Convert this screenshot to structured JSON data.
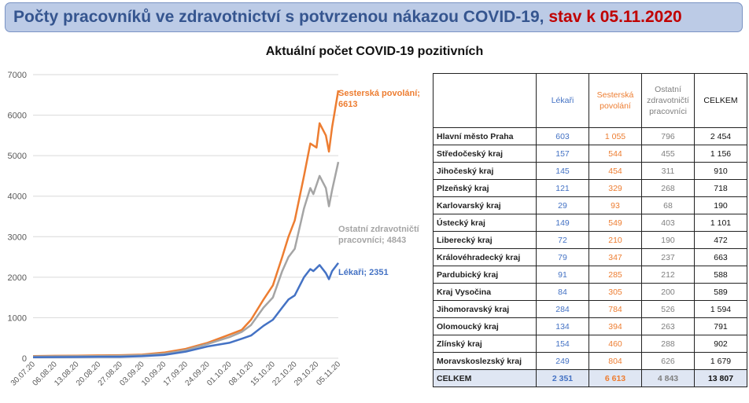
{
  "header": {
    "title": "Počty pracovníků ve zdravotnictví s potvrzenou nákazou COVID-19,",
    "date": "stav k 05.11.2020"
  },
  "chart_data": {
    "type": "line",
    "title": "Aktuální počet COVID-19 pozitivních",
    "ylim": [
      0,
      7000
    ],
    "yticks": [
      0,
      1000,
      2000,
      3000,
      4000,
      5000,
      6000,
      7000
    ],
    "xtick_labels": [
      "30.07.20",
      "06.08.20",
      "13.08.20",
      "20.08.20",
      "27.08.20",
      "03.09.20",
      "10.09.20",
      "17.09.20",
      "24.09.20",
      "01.10.20",
      "08.10.20",
      "15.10.20",
      "22.10.20",
      "29.10.20",
      "05.11.20"
    ],
    "x_start": "2020-07-30",
    "x_end": "2020-11-05",
    "series": [
      {
        "name": "Sesterská povolání",
        "label": "Sesterská povolání; 6613",
        "color": "#ed7d31",
        "points": [
          [
            "2020-07-30",
            55
          ],
          [
            "2020-08-06",
            60
          ],
          [
            "2020-08-13",
            62
          ],
          [
            "2020-08-20",
            70
          ],
          [
            "2020-08-27",
            75
          ],
          [
            "2020-09-03",
            90
          ],
          [
            "2020-09-10",
            140
          ],
          [
            "2020-09-17",
            230
          ],
          [
            "2020-09-24",
            380
          ],
          [
            "2020-10-01",
            580
          ],
          [
            "2020-10-05",
            700
          ],
          [
            "2020-10-08",
            950
          ],
          [
            "2020-10-12",
            1450
          ],
          [
            "2020-10-15",
            1800
          ],
          [
            "2020-10-18",
            2500
          ],
          [
            "2020-10-20",
            3000
          ],
          [
            "2020-10-22",
            3400
          ],
          [
            "2020-10-25",
            4500
          ],
          [
            "2020-10-27",
            5300
          ],
          [
            "2020-10-29",
            5200
          ],
          [
            "2020-10-30",
            5800
          ],
          [
            "2020-11-01",
            5500
          ],
          [
            "2020-11-02",
            5100
          ],
          [
            "2020-11-03",
            5700
          ],
          [
            "2020-11-05",
            6613
          ]
        ]
      },
      {
        "name": "Ostatní zdravotničtí pracovníci",
        "label": "Ostatní zdravotničtí pracovníci; 4843",
        "color": "#a5a5a5",
        "points": [
          [
            "2020-07-30",
            45
          ],
          [
            "2020-08-06",
            48
          ],
          [
            "2020-08-13",
            50
          ],
          [
            "2020-08-20",
            55
          ],
          [
            "2020-08-27",
            60
          ],
          [
            "2020-09-03",
            75
          ],
          [
            "2020-09-10",
            110
          ],
          [
            "2020-09-17",
            200
          ],
          [
            "2020-09-24",
            350
          ],
          [
            "2020-10-01",
            520
          ],
          [
            "2020-10-05",
            650
          ],
          [
            "2020-10-08",
            820
          ],
          [
            "2020-10-12",
            1250
          ],
          [
            "2020-10-15",
            1500
          ],
          [
            "2020-10-18",
            2150
          ],
          [
            "2020-10-20",
            2500
          ],
          [
            "2020-10-22",
            2700
          ],
          [
            "2020-10-25",
            3700
          ],
          [
            "2020-10-27",
            4200
          ],
          [
            "2020-10-28",
            4050
          ],
          [
            "2020-10-30",
            4500
          ],
          [
            "2020-11-01",
            4200
          ],
          [
            "2020-11-02",
            3750
          ],
          [
            "2020-11-03",
            4150
          ],
          [
            "2020-11-05",
            4843
          ]
        ]
      },
      {
        "name": "Lékaři",
        "label": "Lékaři; 2351",
        "color": "#4472c4",
        "points": [
          [
            "2020-07-30",
            25
          ],
          [
            "2020-08-06",
            28
          ],
          [
            "2020-08-13",
            30
          ],
          [
            "2020-08-20",
            33
          ],
          [
            "2020-08-27",
            35
          ],
          [
            "2020-09-03",
            50
          ],
          [
            "2020-09-10",
            80
          ],
          [
            "2020-09-17",
            160
          ],
          [
            "2020-09-24",
            290
          ],
          [
            "2020-10-01",
            380
          ],
          [
            "2020-10-05",
            480
          ],
          [
            "2020-10-08",
            560
          ],
          [
            "2020-10-12",
            800
          ],
          [
            "2020-10-15",
            950
          ],
          [
            "2020-10-18",
            1250
          ],
          [
            "2020-10-20",
            1450
          ],
          [
            "2020-10-22",
            1550
          ],
          [
            "2020-10-25",
            2000
          ],
          [
            "2020-10-27",
            2200
          ],
          [
            "2020-10-28",
            2150
          ],
          [
            "2020-10-30",
            2300
          ],
          [
            "2020-11-01",
            2100
          ],
          [
            "2020-11-02",
            1950
          ],
          [
            "2020-11-03",
            2150
          ],
          [
            "2020-11-05",
            2351
          ]
        ]
      }
    ]
  },
  "table": {
    "headers": [
      "Lékaři",
      "Sesterská povolání",
      "Ostatní zdravotničtí pracovníci",
      "CELKEM"
    ],
    "rows": [
      {
        "region": "Hlavní město Praha",
        "lekari": "603",
        "sesterska": "1 055",
        "ostatni": "796",
        "celkem": "2 454"
      },
      {
        "region": "Středočeský kraj",
        "lekari": "157",
        "sesterska": "544",
        "ostatni": "455",
        "celkem": "1 156"
      },
      {
        "region": "Jihočeský kraj",
        "lekari": "145",
        "sesterska": "454",
        "ostatni": "311",
        "celkem": "910"
      },
      {
        "region": "Plzeňský kraj",
        "lekari": "121",
        "sesterska": "329",
        "ostatni": "268",
        "celkem": "718"
      },
      {
        "region": "Karlovarský kraj",
        "lekari": "29",
        "sesterska": "93",
        "ostatni": "68",
        "celkem": "190"
      },
      {
        "region": "Ústecký kraj",
        "lekari": "149",
        "sesterska": "549",
        "ostatni": "403",
        "celkem": "1 101"
      },
      {
        "region": "Liberecký kraj",
        "lekari": "72",
        "sesterska": "210",
        "ostatni": "190",
        "celkem": "472"
      },
      {
        "region": "Královéhradecký kraj",
        "lekari": "79",
        "sesterska": "347",
        "ostatni": "237",
        "celkem": "663"
      },
      {
        "region": "Pardubický kraj",
        "lekari": "91",
        "sesterska": "285",
        "ostatni": "212",
        "celkem": "588"
      },
      {
        "region": "Kraj Vysočina",
        "lekari": "84",
        "sesterska": "305",
        "ostatni": "200",
        "celkem": "589"
      },
      {
        "region": "Jihomoravský kraj",
        "lekari": "284",
        "sesterska": "784",
        "ostatni": "526",
        "celkem": "1 594"
      },
      {
        "region": "Olomoucký kraj",
        "lekari": "134",
        "sesterska": "394",
        "ostatni": "263",
        "celkem": "791"
      },
      {
        "region": "Zlínský kraj",
        "lekari": "154",
        "sesterska": "460",
        "ostatni": "288",
        "celkem": "902"
      },
      {
        "region": "Moravskoslezský kraj",
        "lekari": "249",
        "sesterska": "804",
        "ostatni": "626",
        "celkem": "1 679"
      }
    ],
    "total": {
      "region": "CELKEM",
      "lekari": "2 351",
      "sesterska": "6 613",
      "ostatni": "4 843",
      "celkem": "13 807"
    }
  }
}
